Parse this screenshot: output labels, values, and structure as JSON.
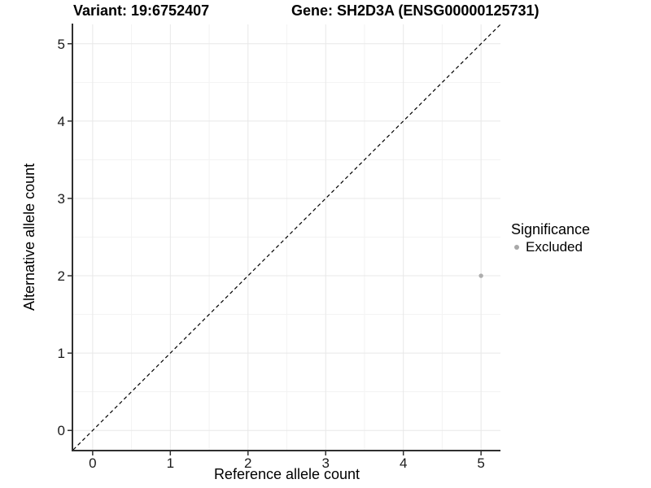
{
  "colors": {
    "background": "#ffffff",
    "grid_major": "#e8e8e8",
    "grid_minor": "#f3f3f3",
    "axis_line": "#2f2f2f",
    "tick_mark": "#2f2f2f",
    "tick_label": "#1a1a1a",
    "title_text": "#000000",
    "point": "#adadad"
  },
  "chart_data": {
    "type": "scatter",
    "titles": {
      "left": "Variant: 19:6752407",
      "right": "Gene: SH2D3A (ENSG00000125731)"
    },
    "xlabel": "Reference allele count",
    "ylabel": "Alternative allele count",
    "xlim": [
      -0.25,
      5.25
    ],
    "ylim": [
      -0.25,
      5.25
    ],
    "x_ticks": [
      0,
      1,
      2,
      3,
      4,
      5
    ],
    "y_ticks": [
      0,
      1,
      2,
      3,
      4,
      5
    ],
    "x_minor_ticks": [
      0.5,
      1.5,
      2.5,
      3.5,
      4.5
    ],
    "y_minor_ticks": [
      0.5,
      1.5,
      2.5,
      3.5,
      4.5
    ],
    "grid": "major+minor",
    "identity_line": {
      "style": "dashed",
      "x1": -0.25,
      "y1": -0.25,
      "x2": 5.25,
      "y2": 5.25,
      "color": "#000000"
    },
    "series": [
      {
        "name": "Excluded",
        "color": "#adadad",
        "points": [
          {
            "x": 5,
            "y": 2
          }
        ]
      }
    ],
    "legend": {
      "title": "Significance",
      "position": "right",
      "items": [
        {
          "label": "Excluded",
          "color": "#a8a8a8"
        }
      ]
    }
  }
}
